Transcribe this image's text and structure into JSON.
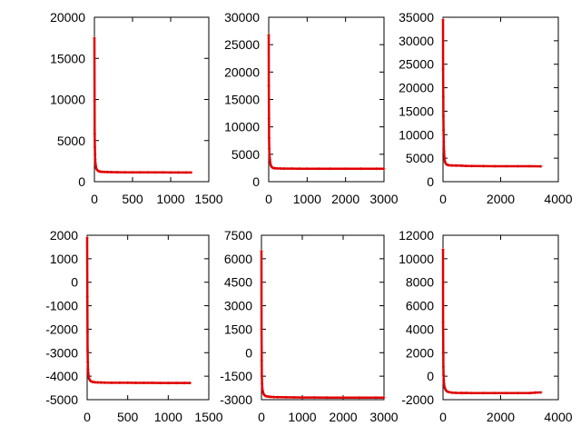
{
  "chart_data": [
    {
      "type": "scatter",
      "title": "",
      "xlabel": "",
      "ylabel": "",
      "grid": false,
      "xlim": [
        0,
        1500
      ],
      "ylim": [
        0,
        20000
      ],
      "xticks": [
        0,
        500,
        1000,
        1500
      ],
      "yticks": [
        0,
        5000,
        10000,
        15000,
        20000
      ],
      "color": "#e00000",
      "series": [
        {
          "x": [
            0,
            2,
            4,
            6,
            8,
            10,
            14,
            18,
            24,
            30,
            40,
            50,
            65,
            80,
            100,
            130,
            170,
            220,
            300,
            400,
            500,
            600,
            700,
            800,
            900,
            1000,
            1100,
            1200,
            1270
          ],
          "y": [
            17500,
            9800,
            5800,
            4200,
            3300,
            2700,
            2200,
            1900,
            1650,
            1500,
            1380,
            1300,
            1250,
            1220,
            1200,
            1180,
            1170,
            1160,
            1150,
            1140,
            1135,
            1130,
            1130,
            1125,
            1125,
            1120,
            1120,
            1120,
            1120
          ]
        }
      ]
    },
    {
      "type": "scatter",
      "title": "",
      "xlabel": "",
      "ylabel": "",
      "grid": false,
      "xlim": [
        0,
        3000
      ],
      "ylim": [
        0,
        30000
      ],
      "xticks": [
        0,
        1000,
        2000,
        3000
      ],
      "yticks": [
        0,
        5000,
        10000,
        15000,
        20000,
        25000,
        30000
      ],
      "color": "#e00000",
      "series": [
        {
          "x": [
            0,
            3,
            6,
            10,
            15,
            20,
            30,
            40,
            55,
            70,
            90,
            120,
            160,
            220,
            300,
            400,
            600,
            800,
            1000,
            1300,
            1600,
            2000,
            2400,
            2800,
            3000
          ],
          "y": [
            26800,
            17500,
            11500,
            8000,
            6000,
            4900,
            4000,
            3400,
            3000,
            2750,
            2600,
            2500,
            2450,
            2420,
            2400,
            2390,
            2380,
            2375,
            2370,
            2365,
            2360,
            2360,
            2355,
            2355,
            2350
          ]
        }
      ]
    },
    {
      "type": "scatter",
      "title": "",
      "xlabel": "",
      "ylabel": "",
      "grid": false,
      "xlim": [
        0,
        4000
      ],
      "ylim": [
        0,
        35000
      ],
      "xticks": [
        0,
        2000,
        4000
      ],
      "yticks": [
        0,
        5000,
        10000,
        15000,
        20000,
        25000,
        30000,
        35000
      ],
      "color": "#e00000",
      "series": [
        {
          "x": [
            0,
            4,
            8,
            12,
            18,
            25,
            35,
            50,
            70,
            100,
            140,
            200,
            300,
            450,
            650,
            800,
            1000,
            1400,
            1800,
            2200,
            2600,
            3000,
            3400
          ],
          "y": [
            34500,
            24000,
            18000,
            14000,
            11000,
            8500,
            6500,
            5000,
            4200,
            3800,
            3600,
            3500,
            3450,
            3420,
            3400,
            3350,
            3320,
            3300,
            3290,
            3285,
            3280,
            3280,
            3275
          ]
        }
      ]
    },
    {
      "type": "scatter",
      "title": "",
      "xlabel": "",
      "ylabel": "",
      "grid": false,
      "xlim": [
        0,
        1500
      ],
      "ylim": [
        -5000,
        2000
      ],
      "xticks": [
        0,
        500,
        1000,
        1500
      ],
      "yticks": [
        -5000,
        -4000,
        -3000,
        -2000,
        -1000,
        0,
        1000,
        2000
      ],
      "color": "#e00000",
      "series": [
        {
          "x": [
            0,
            2,
            4,
            6,
            8,
            10,
            14,
            18,
            24,
            30,
            40,
            50,
            65,
            80,
            100,
            130,
            170,
            220,
            300,
            400,
            500,
            600,
            700,
            800,
            900,
            1000,
            1100,
            1200,
            1270
          ],
          "y": [
            1900,
            -600,
            -2100,
            -2900,
            -3400,
            -3700,
            -3900,
            -4000,
            -4100,
            -4150,
            -4200,
            -4220,
            -4240,
            -4250,
            -4260,
            -4265,
            -4270,
            -4275,
            -4280,
            -4280,
            -4280,
            -4285,
            -4285,
            -4285,
            -4290,
            -4290,
            -4290,
            -4290,
            -4290
          ]
        }
      ]
    },
    {
      "type": "scatter",
      "title": "",
      "xlabel": "",
      "ylabel": "",
      "grid": false,
      "xlim": [
        0,
        3000
      ],
      "ylim": [
        -3000,
        7500
      ],
      "xticks": [
        0,
        1000,
        2000,
        3000
      ],
      "yticks": [
        -3000,
        -1500,
        0,
        1500,
        3000,
        4500,
        6000,
        7500
      ],
      "color": "#e00000",
      "series": [
        {
          "x": [
            0,
            3,
            6,
            10,
            15,
            20,
            30,
            40,
            55,
            70,
            90,
            120,
            160,
            220,
            300,
            400,
            600,
            800,
            1000,
            1300,
            1600,
            2000,
            2400,
            2800,
            3000
          ],
          "y": [
            6500,
            1500,
            -500,
            -1500,
            -2000,
            -2250,
            -2450,
            -2550,
            -2650,
            -2700,
            -2750,
            -2780,
            -2800,
            -2820,
            -2830,
            -2840,
            -2850,
            -2855,
            -2860,
            -2860,
            -2865,
            -2865,
            -2870,
            -2870,
            -2870
          ]
        }
      ]
    },
    {
      "type": "scatter",
      "title": "",
      "xlabel": "",
      "ylabel": "",
      "grid": false,
      "xlim": [
        0,
        4000
      ],
      "ylim": [
        -2000,
        12000
      ],
      "xticks": [
        0,
        2000,
        4000
      ],
      "yticks": [
        -2000,
        0,
        2000,
        4000,
        6000,
        8000,
        10000,
        12000
      ],
      "color": "#e00000",
      "series": [
        {
          "x": [
            0,
            4,
            8,
            12,
            18,
            25,
            35,
            50,
            70,
            100,
            140,
            200,
            300,
            450,
            650,
            800,
            1000,
            1400,
            1800,
            2200,
            2600,
            3000,
            3200,
            3400
          ],
          "y": [
            10800,
            4600,
            2000,
            800,
            100,
            -350,
            -650,
            -900,
            -1050,
            -1200,
            -1300,
            -1350,
            -1400,
            -1420,
            -1430,
            -1430,
            -1435,
            -1435,
            -1440,
            -1440,
            -1440,
            -1440,
            -1400,
            -1380
          ]
        }
      ]
    }
  ]
}
